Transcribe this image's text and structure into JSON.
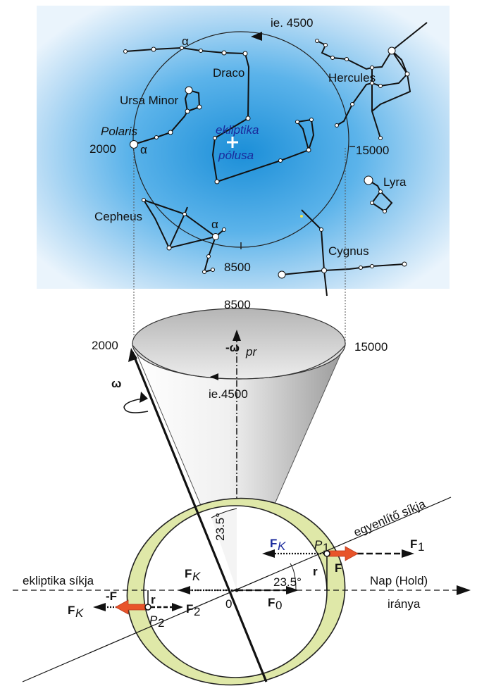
{
  "sky": {
    "constellations": {
      "draco": "Draco",
      "hercules": "Hercules",
      "ursa_minor": "Ursa Minor",
      "lyra": "Lyra",
      "cepheus": "Cepheus",
      "cygnus": "Cygnus"
    },
    "polaris": "Polaris",
    "pole_label_line1": "ekliptika",
    "pole_label_line2": "pólusa",
    "alpha": "α",
    "year_top": "ie. 4500",
    "year_left": "2000",
    "year_right": "15000",
    "year_bottom": "8500"
  },
  "cone": {
    "year_top": "8500",
    "year_left": "2000",
    "year_right": "15000",
    "year_front": "ie.4500",
    "omega": "ω",
    "neg_omega": "-ω",
    "omega_sub": "pr"
  },
  "ellipse": {
    "equator_plane": "egyenlítő síkja",
    "ecliptic_plane": "ekliptika síkja",
    "sun_dir_line1": "Nap (Hold)",
    "sun_dir_line2": "iránya",
    "angle_vertical": "23.5°",
    "angle_horizontal": "23.5°",
    "origin": "0",
    "F": "F",
    "neg_F": "-F",
    "r": "r",
    "P": "P",
    "sub_1": "1",
    "sub_2": "2",
    "sub_0": "0",
    "sub_K": "K"
  }
}
